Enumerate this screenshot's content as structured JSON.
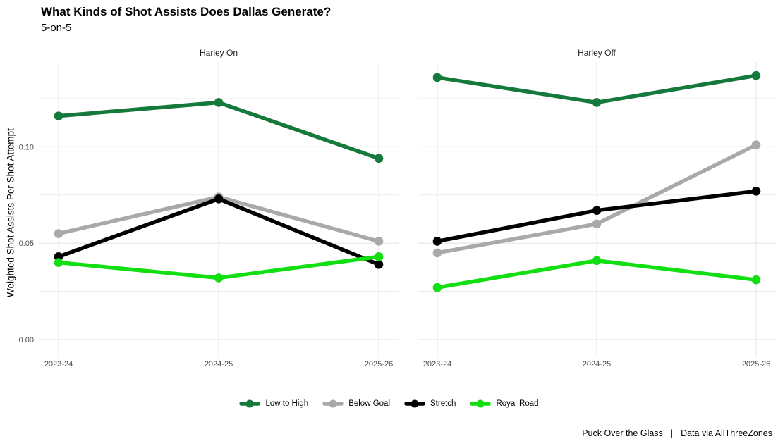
{
  "title": "What Kinds of Shot Assists Does Dallas Generate?",
  "subtitle": "5-on-5",
  "footer": {
    "credit": "Puck Over the Glass",
    "separator": "|",
    "source": "Data via AllThreeZones"
  },
  "colors": {
    "low_to_high": "#15793B",
    "below_goal": "#A9A9A9",
    "stretch": "#000000",
    "royal_road": "#12DF12",
    "grid": "#E8E8E8",
    "tick_text": "#4D4D4D",
    "panel_title_text": "#1A1A1A"
  },
  "chart_data": {
    "type": "line",
    "categories": [
      "2023-24",
      "2024-25",
      "2025-26"
    ],
    "ylabel": "Weighted Shot Assists Per Shot Attempt",
    "ylim": [
      0,
      0.144
    ],
    "yticks": [
      0,
      0.05,
      0.1
    ],
    "ytick_labels": [
      "0.00",
      "0.05",
      "0.10"
    ],
    "minor_grid_values": [
      0.025,
      0.075,
      0.125
    ],
    "grid": "on",
    "legend_position": "bottom",
    "legend": [
      "Low to High",
      "Below Goal",
      "Stretch",
      "Royal Road"
    ],
    "panels": [
      {
        "title": "Harley On",
        "series": [
          {
            "name": "Low to High",
            "color": "#15793B",
            "values": [
              0.116,
              0.123,
              0.094
            ]
          },
          {
            "name": "Below Goal",
            "color": "#A9A9A9",
            "values": [
              0.055,
              0.074,
              0.051
            ]
          },
          {
            "name": "Stretch",
            "color": "#000000",
            "values": [
              0.043,
              0.073,
              0.039
            ]
          },
          {
            "name": "Royal Road",
            "color": "#12DF12",
            "values": [
              0.04,
              0.032,
              0.043
            ]
          }
        ]
      },
      {
        "title": "Harley Off",
        "series": [
          {
            "name": "Low to High",
            "color": "#15793B",
            "values": [
              0.136,
              0.123,
              0.137
            ]
          },
          {
            "name": "Below Goal",
            "color": "#A9A9A9",
            "values": [
              0.045,
              0.06,
              0.101
            ]
          },
          {
            "name": "Stretch",
            "color": "#000000",
            "values": [
              0.051,
              0.067,
              0.077
            ]
          },
          {
            "name": "Royal Road",
            "color": "#12DF12",
            "values": [
              0.027,
              0.041,
              0.031
            ]
          }
        ]
      }
    ]
  }
}
